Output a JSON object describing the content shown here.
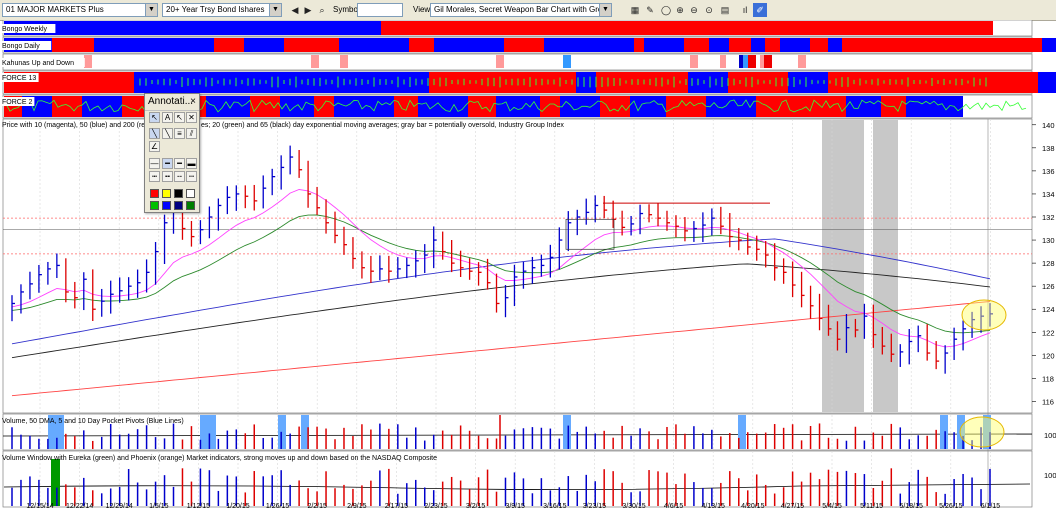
{
  "toolbar": {
    "list_select": "01 MAJOR MARKETS Plus",
    "symbol_select": "20+ Year Trsy Bond Ishares",
    "symbol_label": "Symbol:",
    "symbol_value": "",
    "view_label": "View:",
    "view_select": "Gil Morales, Secret Weapon Bar Chart with Group Index"
  },
  "palette": {
    "title": "Annotati...",
    "close": "×",
    "colors": [
      "#ff0000",
      "#ffff00",
      "#000000",
      "#ffffff",
      "#00c000",
      "#0000ff",
      "#000080",
      "#008000"
    ]
  },
  "panes": {
    "bongo_weekly": "Bongo Weekly",
    "bongo_daily": "Bongo Daily",
    "kahunas": "Kahunas Up and Down",
    "force13": "FORCE 13",
    "force2": "FORCE 2",
    "price_title": "Price with 10 (magenta), 50 (blue) and 200 (red)) day exponential moving averages; 20 (green) and 65 (black) day exponential moving averages; gray bar = potentially oversold, Industry Group Index",
    "price_title_visible": "es; 20 (green) and 65 (black) day exponential moving averages; gray bar = potentially oversold, Industry Group Index",
    "price_title_prefix": "Price with 10 (magenta), 50 (blue) and 200 (red)) day",
    "volume_title": "Volume, 50 DMA, 5 and 10 Day Pocket Pivots (Blue Lines)",
    "volume_window_title": "Volume Window with Eureka (green) and Phoenix (orange) Market indicators, strong moves up and down based on the NASDAQ Composite"
  },
  "colors": {
    "red": "#ff0000",
    "blue": "#0000ff",
    "up_bar": "#0000cc",
    "down_bar": "#dd0000",
    "magenta": "#ff44ff",
    "green": "#2e8b2e",
    "black": "#222222",
    "ma200": "#ff4444",
    "ma50": "#3333cc",
    "gray_bar": "#c8c8c8"
  },
  "chart_data": {
    "type": "bar",
    "title": "Price with 10 (magenta), 50 (blue) and 200 (red)) day exponential moving averages; 20 (green) and 65 (black) day exponential moving averages; gray bar = potentially oversold, Industry Group Index",
    "x_labels": [
      "12/15/14",
      "12/22/14",
      "12/29/14",
      "1/5/15",
      "1/12/15",
      "1/20/15",
      "1/26/15",
      "2/2/15",
      "2/9/15",
      "2/17/15",
      "2/23/15",
      "3/2/15",
      "3/9/15",
      "3/16/15",
      "3/23/15",
      "3/30/15",
      "4/6/15",
      "4/13/15",
      "4/20/15",
      "4/27/15",
      "5/4/15",
      "5/11/15",
      "5/18/15",
      "5/26/15",
      "6/1/15"
    ],
    "y_ticks": [
      116,
      118,
      120,
      122,
      124,
      126,
      128,
      130,
      132,
      134,
      136,
      138,
      140
    ],
    "ylim": [
      115,
      140.5
    ],
    "volume_ticks": [
      100
    ],
    "volume_window_ticks": [
      100
    ],
    "closes": [
      124.5,
      125.5,
      126.2,
      127,
      127.5,
      127.8,
      125.5,
      125,
      126.6,
      124,
      124.7,
      125.3,
      125.6,
      126,
      126.3,
      127.2,
      129,
      131.5,
      132.5,
      131,
      130.3,
      130.9,
      132,
      133,
      133.7,
      134,
      133.8,
      133.4,
      134.5,
      135.5,
      136.3,
      137.2,
      136.1,
      134,
      132.8,
      131.5,
      130.4,
      129.6,
      128.4,
      127.6,
      127.3,
      127.5,
      127.3,
      127.5,
      127.8,
      128.2,
      128.7,
      130,
      129,
      128,
      127.6,
      127.3,
      127.2,
      126.3,
      124.5,
      125,
      126.8,
      127.3,
      127.6,
      127.8,
      128.5,
      130,
      131.5,
      132,
      132.4,
      133,
      132.6,
      131.8,
      131.1,
      131.4,
      132.3,
      132.2,
      131.9,
      131.5,
      131.2,
      130.8,
      131,
      131.3,
      131.9,
      131.2,
      130.3,
      130,
      129.4,
      129.2,
      128.7,
      127.6,
      127.2,
      126.1,
      125.2,
      124.3,
      123.2,
      122.3,
      121.4,
      122.4,
      122.2,
      123.4,
      121.8,
      120.8,
      120.1,
      120.3,
      121.2,
      121.7,
      120.2,
      119.5,
      120.2,
      121.4,
      122.3,
      123.1,
      123.4,
      123.6
    ],
    "gray_bars": [
      [
        "4/29/15",
        "5/5/15"
      ],
      [
        "5/8/15",
        "5/12/15"
      ]
    ],
    "pane_labels": [
      "Bongo Weekly",
      "Bongo Daily",
      "Kahunas Up and Down",
      "FORCE 13",
      "FORCE 2",
      "Volume, 50 DMA, 5 and 10 Day Pocket Pivots (Blue Lines)",
      "Volume Window with Eureka (green) and Phoenix (orange) Market indicators, strong moves up and down based on the NASDAQ Composite"
    ]
  }
}
